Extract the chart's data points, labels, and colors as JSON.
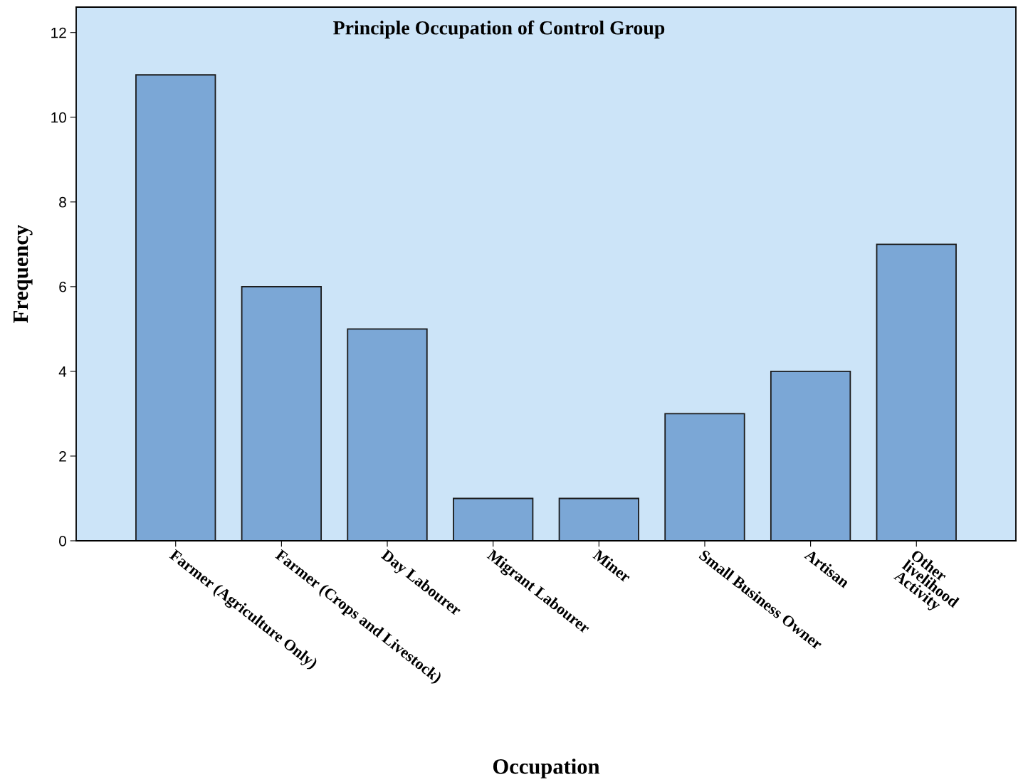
{
  "chart_data": {
    "type": "bar",
    "title": "Principle Occupation of Control Group",
    "xlabel": "Occupation",
    "ylabel": "Frequency",
    "categories": [
      "Farmer (Agriculture Only)",
      "Farmer (Crops and Livestock)",
      "Day Labourer",
      "Migrant Labourer",
      "Miner",
      "Small Business Owner",
      "Artisan",
      "Other\nlivelihood\nActivity"
    ],
    "values": [
      11,
      6,
      5,
      1,
      1,
      3,
      4,
      7
    ],
    "color": "#7ba7d6",
    "ylim": [
      0,
      12.6
    ],
    "yticks": [
      0,
      2,
      4,
      6,
      8,
      10,
      12
    ],
    "grid": false,
    "legend": false
  }
}
